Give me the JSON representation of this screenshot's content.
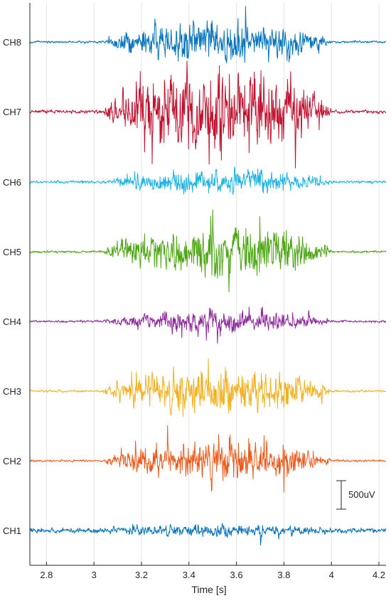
{
  "chart_data": {
    "type": "line",
    "title": "",
    "xlabel": "Time [s]",
    "ylabel": "",
    "xlim": [
      2.73,
      4.23
    ],
    "xticks": [
      2.8,
      3.0,
      3.2,
      3.4,
      3.6,
      3.8,
      4.0,
      4.2
    ],
    "xtick_labels": [
      "2.8",
      "3",
      "3.2",
      "3.4",
      "3.6",
      "3.8",
      "4",
      "4.2"
    ],
    "grid": "vertical",
    "legend": "none",
    "scale_bar": {
      "label": "500uV",
      "value_uV": 500
    },
    "burst_window_s": [
      3.07,
      3.95
    ],
    "series": [
      {
        "name": "CH8",
        "color": "#0072BD",
        "baseline_uV": 20,
        "peak_amplitude_uV": 750,
        "seed": 8
      },
      {
        "name": "CH7",
        "color": "#C1122F",
        "baseline_uV": 30,
        "peak_amplitude_uV": 1600,
        "seed": 7
      },
      {
        "name": "CH6",
        "color": "#1EB4E6",
        "baseline_uV": 25,
        "peak_amplitude_uV": 450,
        "seed": 6
      },
      {
        "name": "CH5",
        "color": "#4DA613",
        "baseline_uV": 20,
        "peak_amplitude_uV": 900,
        "seed": 5
      },
      {
        "name": "CH4",
        "color": "#8E2A9C",
        "baseline_uV": 20,
        "peak_amplitude_uV": 380,
        "seed": 4
      },
      {
        "name": "CH3",
        "color": "#F2B01E",
        "baseline_uV": 18,
        "peak_amplitude_uV": 850,
        "seed": 3
      },
      {
        "name": "CH2",
        "color": "#EE5A1B",
        "baseline_uV": 18,
        "peak_amplitude_uV": 700,
        "seed": 2
      },
      {
        "name": "CH1",
        "color": "#0072BD",
        "baseline_uV": 40,
        "peak_amplitude_uV": 220,
        "seed": 1
      }
    ]
  }
}
